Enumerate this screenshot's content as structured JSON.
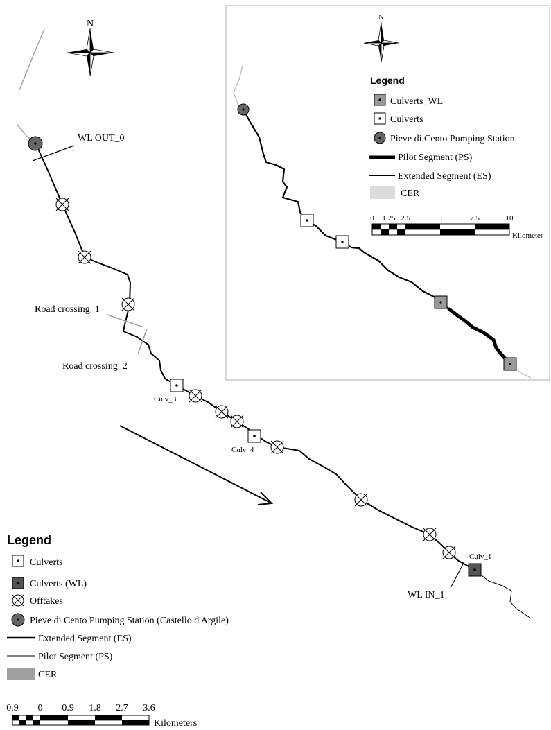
{
  "main_map": {
    "north_label": "N",
    "point_labels": {
      "wl_out": "WL OUT_0",
      "wl_in": "WL IN_1",
      "road_crossing_1": "Road crossing_1",
      "road_crossing_2": "Road crossing_2",
      "culv_3": "Culv_3",
      "culv_4": "Culv_4",
      "culv_1": "Culv_1"
    },
    "legend": {
      "title": "Legend",
      "items": [
        {
          "label": "Culverts",
          "icon": "culvert-white-square"
        },
        {
          "label": "Culverts (WL)",
          "icon": "culvert-dark-square"
        },
        {
          "label": "Offtakes",
          "icon": "offtake-crossed-circle"
        },
        {
          "label": "Pieve di Cento Pumping Station (Castello d'Argile)",
          "icon": "pumping-station-circle"
        },
        {
          "label": "Extended Segment (ES)",
          "icon": "thick-line"
        },
        {
          "label": "Pilot Segment (PS)",
          "icon": "thin-line"
        },
        {
          "label": "CER",
          "icon": "gray-rect"
        }
      ]
    },
    "scale_bar": {
      "ticks": [
        "0.9",
        "0",
        "0.9",
        "1.8",
        "2.7",
        "3.6"
      ],
      "unit": "Kilometers"
    }
  },
  "inset_map": {
    "north_label": "N",
    "legend": {
      "title": "Legend",
      "items": [
        {
          "label": "Culverts_WL",
          "icon": "culvert-gray-square"
        },
        {
          "label": "Culverts",
          "icon": "culvert-white-square"
        },
        {
          "label": "Pieve di Cento Pumping Station",
          "icon": "pumping-station-circle"
        },
        {
          "label": "Pilot Segment (PS)",
          "icon": "thick-line"
        },
        {
          "label": "Extended Segment (ES)",
          "icon": "line"
        },
        {
          "label": "CER",
          "icon": "light-gray-rect"
        }
      ]
    },
    "scale_bar": {
      "ticks": [
        "0",
        "1.25",
        "2.5",
        "5",
        "7.5",
        "10"
      ],
      "unit": "Kilometer"
    }
  },
  "colors": {
    "line": "#000000",
    "cer_main": "#a0a0a0",
    "cer_inset": "#dcdcdc",
    "culvert_wl_main": "#555555",
    "culvert_wl_inset": "#999999",
    "pumping_station": "#666666",
    "inset_frame": "#b0b0b0"
  }
}
